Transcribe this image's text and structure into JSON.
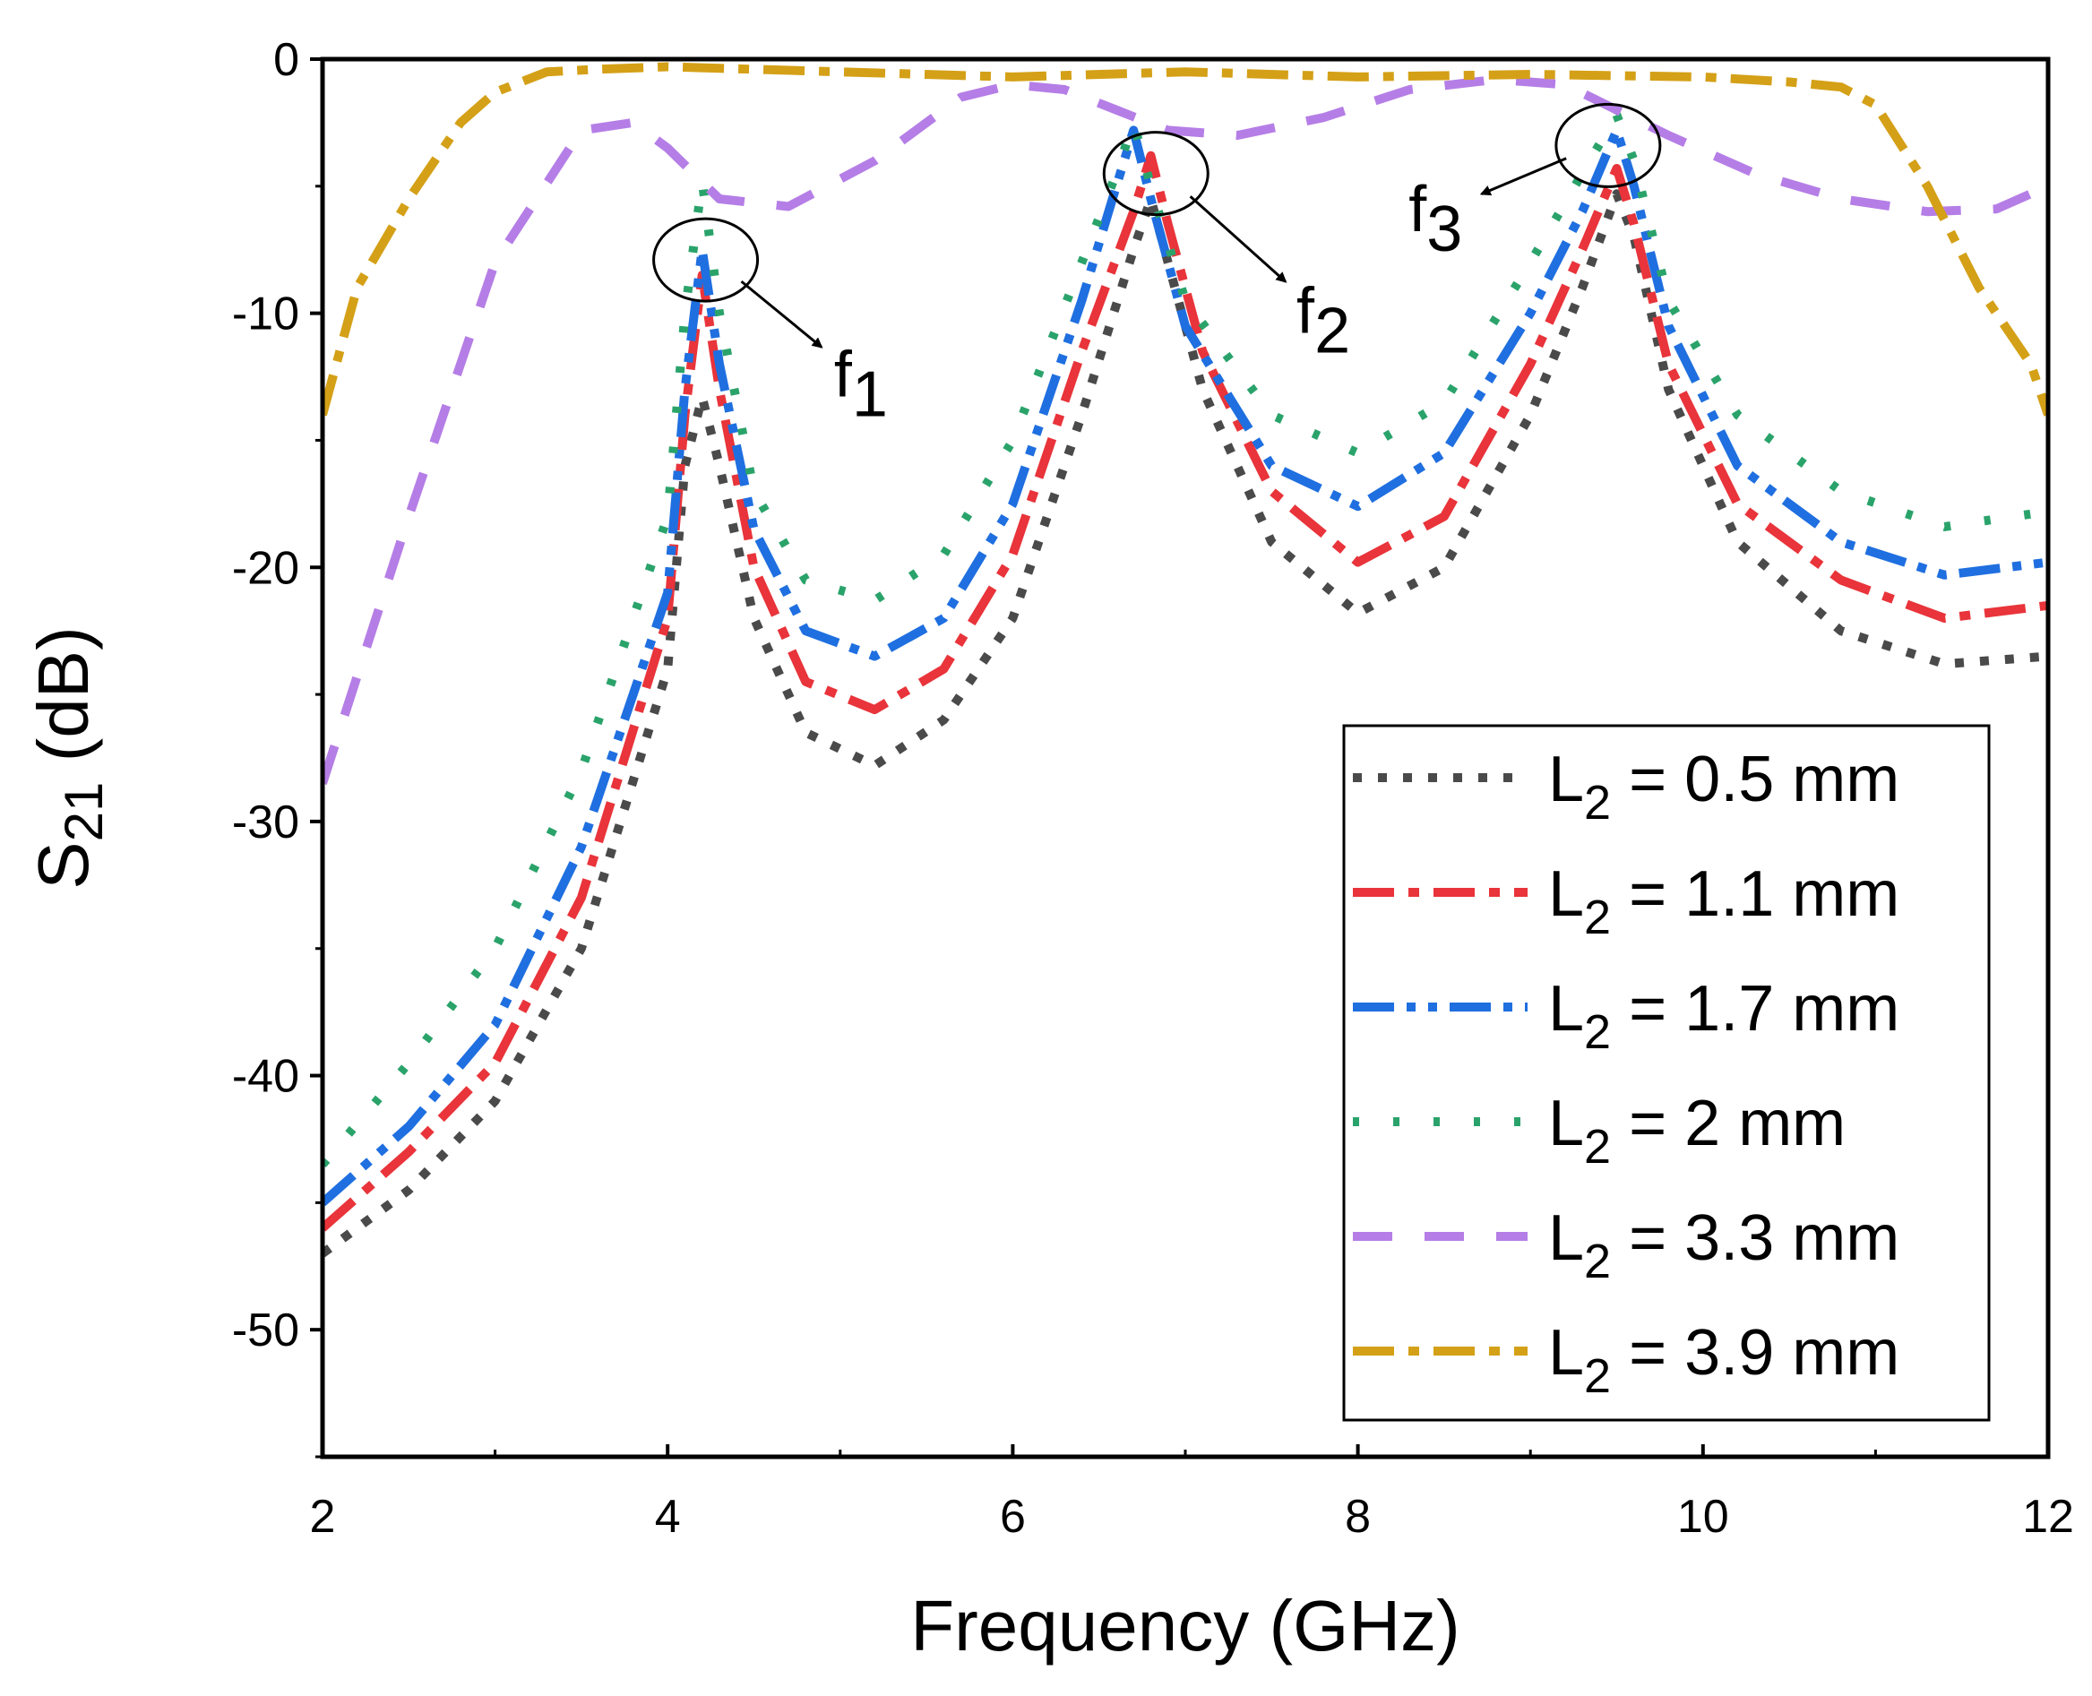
{
  "chart_data": {
    "type": "line",
    "title": "",
    "xlabel": "Frequency (GHz)",
    "ylabel_main": "S",
    "ylabel_sub": "21",
    "ylabel_unit": " (dB)",
    "xlim": [
      2,
      12
    ],
    "ylim": [
      -55,
      0
    ],
    "xticks": [
      2,
      4,
      6,
      8,
      10,
      12
    ],
    "xtick_labels": [
      "2",
      "4",
      "6",
      "8",
      "10",
      "12"
    ],
    "yticks": [
      0,
      -10,
      -20,
      -30,
      -40,
      -50
    ],
    "ytick_labels": [
      "0",
      "-10",
      "-20",
      "-30",
      "-40",
      "-50"
    ],
    "grid": false,
    "legend_position": "bottom-right",
    "series": [
      {
        "name_main": "L",
        "name_sub": "2",
        "name_rest": " = 0.5 mm",
        "color": "#4a4a4a",
        "dash": "dot",
        "x": [
          2,
          2.5,
          3,
          3.5,
          4,
          4.1,
          4.2,
          4.3,
          4.5,
          4.8,
          5.2,
          5.6,
          6,
          6.4,
          6.7,
          6.8,
          6.9,
          7.1,
          7.5,
          8,
          8.5,
          9,
          9.3,
          9.5,
          9.6,
          9.8,
          10.2,
          10.8,
          11.4,
          12
        ],
        "y": [
          -47,
          -44.5,
          -41,
          -35,
          -24,
          -16,
          -13.3,
          -16,
          -22,
          -26.5,
          -27.8,
          -26,
          -22,
          -14,
          -7.5,
          -5.5,
          -8,
          -13,
          -19,
          -21.8,
          -20,
          -14,
          -9,
          -5.3,
          -7,
          -13,
          -19,
          -22.5,
          -23.8,
          -23.5
        ]
      },
      {
        "name_main": "L",
        "name_sub": "2",
        "name_rest": " = 1.1 mm",
        "color": "#e8343a",
        "dash": "dashdot",
        "x": [
          2,
          2.5,
          3,
          3.5,
          4,
          4.1,
          4.2,
          4.3,
          4.5,
          4.8,
          5.2,
          5.6,
          6,
          6.4,
          6.7,
          6.8,
          6.9,
          7.1,
          7.5,
          8,
          8.5,
          9,
          9.3,
          9.5,
          9.6,
          9.8,
          10.2,
          10.8,
          11.4,
          12
        ],
        "y": [
          -46,
          -43,
          -39.5,
          -33,
          -22,
          -14,
          -8.5,
          -13,
          -20,
          -24.5,
          -25.6,
          -24,
          -19.5,
          -11.5,
          -6,
          -3.8,
          -6.5,
          -11.5,
          -17,
          -19.8,
          -18,
          -12,
          -7.5,
          -4.3,
          -6.5,
          -12,
          -17.5,
          -20.5,
          -22,
          -21.5
        ]
      },
      {
        "name_main": "L",
        "name_sub": "2",
        "name_rest": " = 1.7 mm",
        "color": "#1f6fe0",
        "dash": "dashdotdot",
        "x": [
          2,
          2.5,
          3,
          3.5,
          4,
          4.1,
          4.2,
          4.3,
          4.5,
          4.8,
          5.2,
          5.6,
          6,
          6.4,
          6.6,
          6.7,
          6.8,
          7,
          7.5,
          8,
          8.5,
          9,
          9.3,
          9.5,
          9.6,
          9.8,
          10.2,
          10.8,
          11.4,
          12
        ],
        "y": [
          -45,
          -42,
          -38,
          -31,
          -21,
          -13,
          -7.5,
          -12,
          -18.5,
          -22.5,
          -23.5,
          -22,
          -17.5,
          -9.5,
          -5,
          -2.8,
          -5.5,
          -10.5,
          -16,
          -17.6,
          -15.5,
          -10,
          -6,
          -2.8,
          -5,
          -10.5,
          -16,
          -19,
          -20.3,
          -19.8
        ]
      },
      {
        "name_main": "L",
        "name_sub": "2",
        "name_rest": " = 2 mm",
        "color": "#2aa36b",
        "dash": "sparse",
        "x": [
          2,
          2.5,
          3,
          3.5,
          4,
          4.1,
          4.2,
          4.3,
          4.5,
          4.8,
          5.2,
          5.6,
          6,
          6.4,
          6.6,
          6.7,
          6.8,
          7,
          7.5,
          8,
          8.5,
          9,
          9.3,
          9.5,
          9.6,
          9.8,
          10.2,
          10.8,
          11.4,
          12
        ],
        "y": [
          -43.5,
          -39.5,
          -35,
          -28,
          -18,
          -10,
          -4.8,
          -10,
          -17,
          -20.5,
          -21.3,
          -19.5,
          -15,
          -8,
          -4.5,
          -2.5,
          -5,
          -9.5,
          -14,
          -15.5,
          -13.5,
          -8,
          -4.5,
          -2.2,
          -4,
          -9.5,
          -14,
          -17,
          -18.4,
          -17.8
        ]
      },
      {
        "name_main": "L",
        "name_sub": "2",
        "name_rest": " = 3.3 mm",
        "color": "#b57ee6",
        "dash": "dash",
        "x": [
          2,
          2.5,
          3,
          3.5,
          3.8,
          4,
          4.3,
          4.7,
          5.2,
          5.7,
          6,
          6.3,
          6.6,
          6.9,
          7.3,
          7.8,
          8.3,
          8.8,
          9.2,
          9.5,
          9.8,
          10.3,
          10.8,
          11.3,
          11.7,
          12
        ],
        "y": [
          -28.5,
          -18,
          -8,
          -2.8,
          -2.5,
          -3.5,
          -5.5,
          -5.8,
          -4,
          -1.5,
          -1,
          -1.2,
          -2,
          -2.8,
          -3,
          -2.3,
          -1.2,
          -0.8,
          -1,
          -2,
          -3,
          -4.5,
          -5.5,
          -6,
          -5.9,
          -5
        ]
      },
      {
        "name_main": "L",
        "name_sub": "2",
        "name_rest": " = 3.9 mm",
        "color": "#d4a017",
        "dash": "dashdot",
        "x": [
          2,
          2.2,
          2.5,
          2.8,
          3,
          3.3,
          3.6,
          4,
          5,
          6,
          7,
          8,
          9,
          10,
          10.5,
          10.8,
          11,
          11.3,
          11.6,
          11.9,
          12
        ],
        "y": [
          -14,
          -9,
          -5.5,
          -2.5,
          -1.3,
          -0.5,
          -0.4,
          -0.3,
          -0.5,
          -0.7,
          -0.5,
          -0.7,
          -0.6,
          -0.7,
          -0.9,
          -1.1,
          -1.8,
          -5,
          -9,
          -12,
          -14
        ]
      }
    ],
    "annotations": [
      {
        "main": "f",
        "sub": "1",
        "circle_x": 4.22,
        "circle_y": -7.9,
        "label_x": 5.12,
        "label_y": -12.5
      },
      {
        "main": "f",
        "sub": "2",
        "circle_x": 6.83,
        "circle_y": -4.5,
        "label_x": 7.8,
        "label_y": -10
      },
      {
        "main": "f",
        "sub": "3",
        "circle_x": 9.45,
        "circle_y": -3.4,
        "label_x": 8.45,
        "label_y": -6
      }
    ]
  }
}
